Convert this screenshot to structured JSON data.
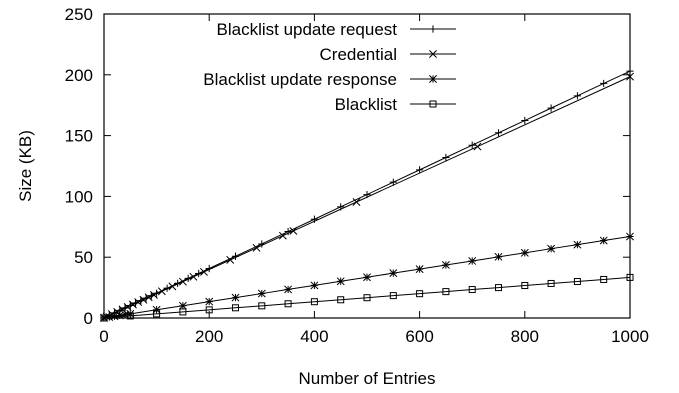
{
  "chart_data": {
    "type": "line",
    "xlabel": "Number of Entries",
    "ylabel": "Size (KB)",
    "xlim": [
      0,
      1000
    ],
    "ylim": [
      0,
      250
    ],
    "x_ticks": [
      "0",
      "200",
      "400",
      "600",
      "800",
      "1000"
    ],
    "y_ticks": [
      "0",
      "50",
      "100",
      "150",
      "200",
      "250"
    ],
    "grid": false,
    "legend_position": "top-left",
    "series": [
      {
        "name": "Blacklist update request",
        "marker": "plus",
        "x": [
          0,
          10,
          20,
          30,
          40,
          50,
          60,
          70,
          80,
          90,
          100,
          120,
          140,
          160,
          180,
          200,
          250,
          300,
          350,
          400,
          450,
          500,
          550,
          600,
          650,
          700,
          750,
          800,
          850,
          900,
          950,
          1000
        ],
        "y": [
          0.2,
          2.2,
          4.2,
          6.3,
          8.3,
          10.3,
          12.3,
          14.3,
          16.4,
          18.4,
          20.4,
          24.5,
          28.5,
          32.6,
          36.6,
          40.7,
          50.8,
          60.9,
          71.1,
          81.2,
          91.4,
          101.5,
          111.7,
          121.8,
          132.0,
          142.1,
          152.3,
          162.4,
          172.6,
          182.7,
          192.9,
          203.0
        ]
      },
      {
        "name": "Credential",
        "marker": "cross",
        "x": [
          0,
          5,
          15,
          25,
          35,
          45,
          55,
          65,
          75,
          85,
          95,
          110,
          130,
          150,
          170,
          190,
          240,
          290,
          340,
          360,
          480,
          710,
          1000
        ],
        "y": [
          0.2,
          1.2,
          3.2,
          5.1,
          7.1,
          9.1,
          11.1,
          13.1,
          15.0,
          17.0,
          19.0,
          22.0,
          26.0,
          29.9,
          33.9,
          37.9,
          47.8,
          57.7,
          67.7,
          71.6,
          95.4,
          141.0,
          198.5
        ]
      },
      {
        "name": "Blacklist update response",
        "marker": "star",
        "x": [
          0,
          10,
          20,
          30,
          40,
          50,
          100,
          150,
          200,
          250,
          300,
          350,
          400,
          450,
          500,
          550,
          600,
          650,
          700,
          750,
          800,
          850,
          900,
          950,
          1000
        ],
        "y": [
          0.1,
          0.8,
          1.4,
          2.1,
          2.8,
          3.4,
          6.8,
          10.1,
          13.5,
          16.8,
          20.1,
          23.5,
          26.8,
          30.2,
          33.5,
          36.9,
          40.2,
          43.6,
          46.9,
          50.3,
          53.6,
          57.0,
          60.3,
          63.7,
          67.0
        ]
      },
      {
        "name": "Blacklist",
        "marker": "square",
        "x": [
          0,
          50,
          100,
          150,
          200,
          250,
          300,
          350,
          400,
          450,
          500,
          550,
          600,
          650,
          700,
          750,
          800,
          850,
          900,
          950,
          1000
        ],
        "y": [
          0.0,
          1.7,
          3.4,
          5.0,
          6.7,
          8.4,
          10.0,
          11.7,
          13.4,
          15.0,
          16.7,
          18.4,
          20.0,
          21.7,
          23.4,
          25.0,
          26.7,
          28.4,
          30.0,
          31.7,
          33.4
        ]
      }
    ]
  }
}
